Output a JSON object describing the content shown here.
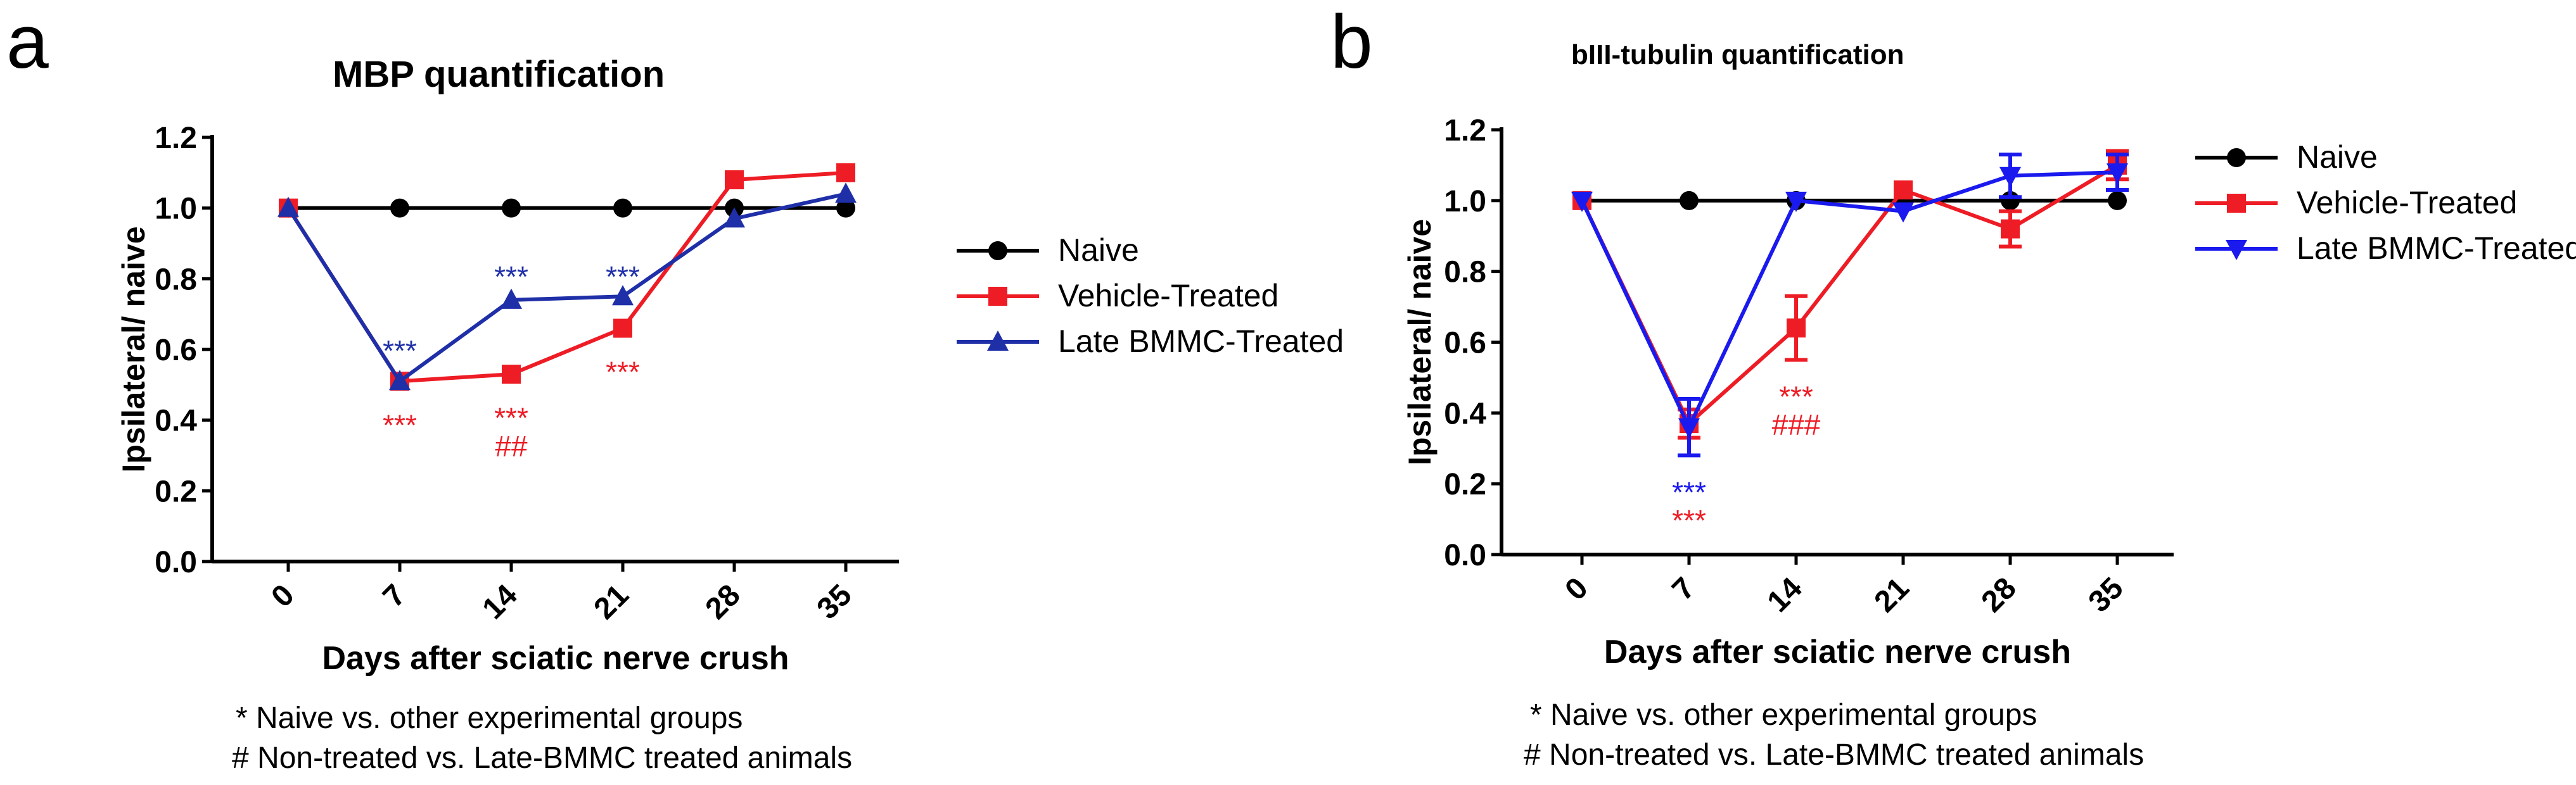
{
  "figure": {
    "panels": [
      {
        "letter": "a",
        "footnotes": [
          "* Naive vs. other experimental groups",
          "# Non-treated vs. Late-BMMC treated animals"
        ]
      },
      {
        "letter": "b",
        "footnotes": [
          "* Naive vs. other experimental groups",
          "# Non-treated vs. Late-BMMC treated animals"
        ]
      }
    ]
  },
  "colors": {
    "naive": "#000000",
    "vehicle": "#ee1c25",
    "bmmc_a": "#1f2fa8",
    "bmmc_b": "#1a1aee"
  },
  "chart_data": [
    {
      "type": "line",
      "title": "MBP quantification",
      "xlabel": "Days after sciatic nerve crush",
      "ylabel": "Ipsilateral/ naive",
      "categories": [
        "0",
        "7",
        "14",
        "21",
        "28",
        "35"
      ],
      "yticks": [
        "0.0",
        "0.2",
        "0.4",
        "0.6",
        "0.8",
        "1.0",
        "1.2"
      ],
      "ylim": [
        0,
        1.2
      ],
      "legend_position": "right",
      "series": [
        {
          "name": "Naive",
          "marker": "circle",
          "color": "#000000",
          "values": [
            1.0,
            1.0,
            1.0,
            1.0,
            1.0,
            1.0
          ]
        },
        {
          "name": "Vehicle-Treated",
          "marker": "square",
          "color": "#ee1c25",
          "values": [
            1.0,
            0.51,
            0.53,
            0.66,
            1.08,
            1.1
          ]
        },
        {
          "name": "Late BMMC-Treated",
          "marker": "triangle-up",
          "color": "#1f2fa8",
          "values": [
            1.0,
            0.51,
            0.74,
            0.75,
            0.97,
            1.04
          ]
        }
      ],
      "annotations": [
        {
          "text": "***",
          "x": "7",
          "y": 0.6,
          "color": "#1f2fa8"
        },
        {
          "text": "***",
          "x": "7",
          "y": 0.39,
          "color": "#ee1c25"
        },
        {
          "text": "***",
          "x": "14",
          "y": 0.81,
          "color": "#1f2fa8"
        },
        {
          "text": "***",
          "x": "14",
          "y": 0.41,
          "color": "#ee1c25"
        },
        {
          "text": "##",
          "x": "14",
          "y": 0.33,
          "color": "#ee1c25"
        },
        {
          "text": "***",
          "x": "21",
          "y": 0.81,
          "color": "#1f2fa8"
        },
        {
          "text": "***",
          "x": "21",
          "y": 0.54,
          "color": "#ee1c25"
        }
      ]
    },
    {
      "type": "line",
      "title": "bIII-tubulin quantification",
      "xlabel": "Days after sciatic nerve crush",
      "ylabel": "Ipsilateral/ naive",
      "categories": [
        "0",
        "7",
        "14",
        "21",
        "28",
        "35"
      ],
      "yticks": [
        "0.0",
        "0.2",
        "0.4",
        "0.6",
        "0.8",
        "1.0",
        "1.2"
      ],
      "ylim": [
        0,
        1.2
      ],
      "legend_position": "right",
      "series": [
        {
          "name": "Naive",
          "marker": "circle",
          "color": "#000000",
          "values": [
            1.0,
            1.0,
            1.0,
            1.0,
            1.0,
            1.0
          ],
          "errors": [
            0,
            0,
            0,
            0,
            0,
            0
          ]
        },
        {
          "name": "Vehicle-Treated",
          "marker": "square",
          "color": "#ee1c25",
          "values": [
            1.0,
            0.37,
            0.64,
            1.03,
            0.92,
            1.1
          ],
          "errors": [
            0,
            0.04,
            0.09,
            0,
            0.05,
            0.04
          ]
        },
        {
          "name": "Late BMMC-Treated",
          "marker": "triangle-down",
          "color": "#1a1aee",
          "values": [
            1.0,
            0.36,
            1.0,
            0.97,
            1.07,
            1.08
          ],
          "errors": [
            0,
            0.08,
            0,
            0,
            0.06,
            0.05
          ]
        }
      ],
      "annotations": [
        {
          "text": "***",
          "x": "7",
          "y": 0.18,
          "color": "#1a1aee"
        },
        {
          "text": "***",
          "x": "7",
          "y": 0.1,
          "color": "#ee1c25"
        },
        {
          "text": "***",
          "x": "14",
          "y": 0.45,
          "color": "#ee1c25"
        },
        {
          "text": "###",
          "x": "14",
          "y": 0.37,
          "color": "#ee1c25"
        }
      ]
    }
  ]
}
